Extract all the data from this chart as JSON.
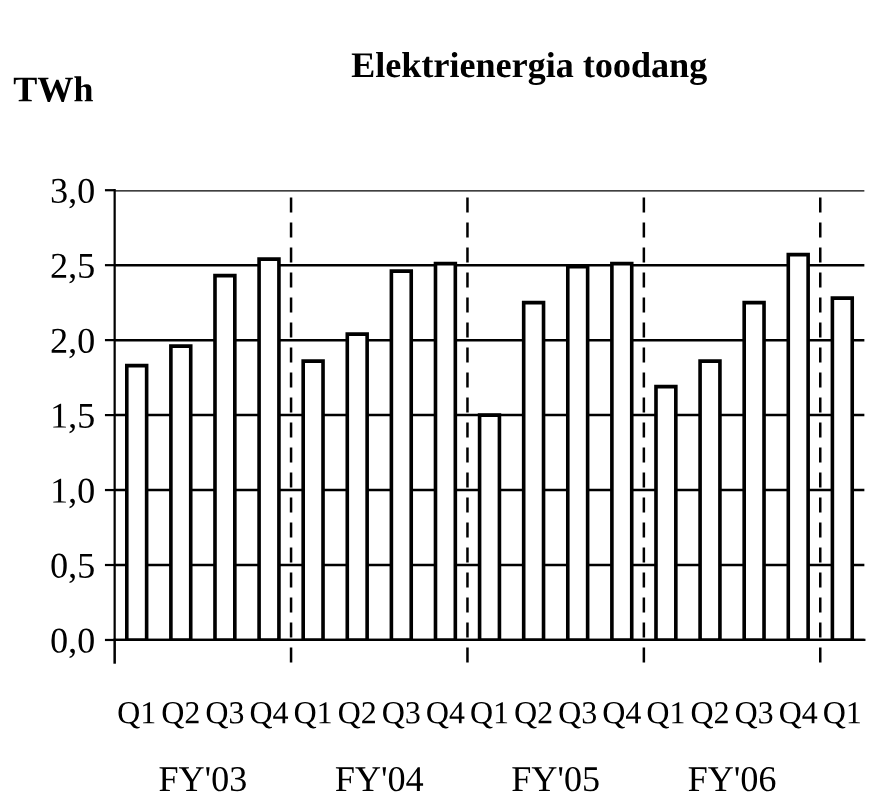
{
  "chart_data": {
    "type": "bar",
    "title": "Elektrienergia toodang",
    "ylabel": "TWh",
    "categories": [
      "Q1",
      "Q2",
      "Q3",
      "Q4",
      "Q1",
      "Q2",
      "Q3",
      "Q4",
      "Q1",
      "Q2",
      "Q3",
      "Q4",
      "Q1",
      "Q2",
      "Q3",
      "Q4",
      "Q1"
    ],
    "values": [
      1.83,
      1.96,
      2.43,
      2.54,
      1.86,
      2.04,
      2.46,
      2.51,
      1.5,
      2.25,
      2.49,
      2.51,
      1.69,
      1.86,
      2.25,
      2.57,
      2.28
    ],
    "color": "#ffffff",
    "ylim": [
      0,
      3
    ],
    "yticks": [
      {
        "value": 0,
        "label": "0,0"
      },
      {
        "value": 0.5,
        "label": "0,5"
      },
      {
        "value": 1,
        "label": "1,0"
      },
      {
        "value": 1.5,
        "label": "1,5"
      },
      {
        "value": 2,
        "label": "2,0"
      },
      {
        "value": 2.5,
        "label": "2,5"
      },
      {
        "value": 3,
        "label": "3,0"
      }
    ],
    "grid": "y",
    "annotations": [
      "FY'03",
      "FY'04",
      "FY'05",
      "FY'06"
    ]
  }
}
